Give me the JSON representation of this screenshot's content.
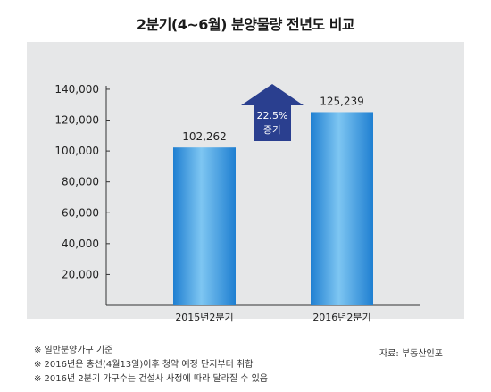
{
  "chart_data": {
    "type": "bar",
    "title": "2분기(4~6월) 분양물량 전년도 비교",
    "categories": [
      "2015년2분기",
      "2016년2분기"
    ],
    "values": [
      102262,
      125239
    ],
    "value_labels": [
      "102,262",
      "125,239"
    ],
    "ylim": [
      0,
      140000
    ],
    "yticks": [
      20000,
      40000,
      60000,
      80000,
      100000,
      120000,
      140000
    ],
    "ytick_labels": [
      "20,000",
      "40,000",
      "60,000",
      "80,000",
      "100,000",
      "120,000",
      "140,000"
    ],
    "grid": false,
    "xlabel": "",
    "ylabel": "",
    "annotation": {
      "line1": "22.5%",
      "line2": "증가"
    },
    "colors": {
      "panel": "#e6e7e8",
      "bar_dark": "#1f7fd1",
      "bar_light": "#7ec6f2",
      "arrow": "#2a3f8f",
      "arrow_text": "#ffffff"
    }
  },
  "notes": [
    "※ 일반분양가구 기준",
    "※ 2016년은 총선(4월13일)이후 청약 예정 단지부터 취합",
    "※ 2016년 2분기 가구수는 건설사 사정에 따라 달라질 수 있음"
  ],
  "source": "자료: 부동산인포"
}
